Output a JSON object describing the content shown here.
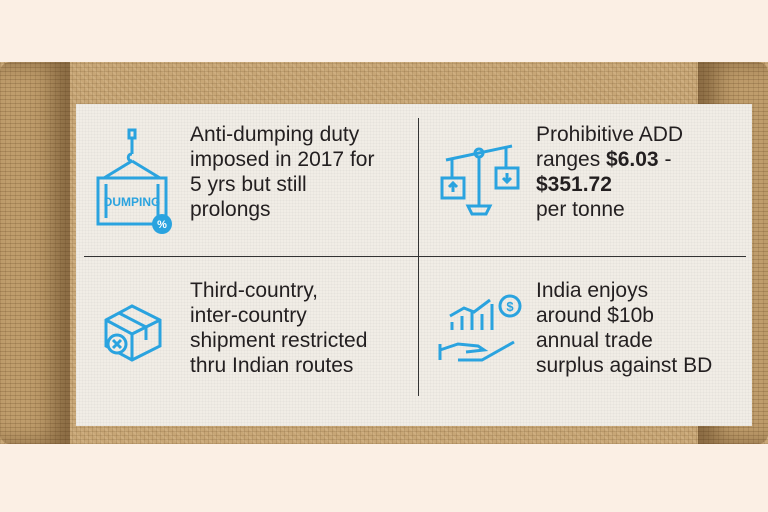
{
  "items": [
    {
      "icon": "dumping-container-icon",
      "icon_label": "DUMPING",
      "icon_badge": "%",
      "lines": [
        "Anti-dumping duty",
        "imposed in 2017 for",
        "5 yrs but still",
        "prolongs"
      ]
    },
    {
      "icon": "balance-scale-icon",
      "line1": "Prohibitive ADD",
      "line2_prefix": "ranges ",
      "line2_bold": "$6.03",
      "line2_suffix": " -",
      "line3_bold": "$351.72",
      "line4": "per tonne"
    },
    {
      "icon": "restricted-box-icon",
      "lines": [
        "Third-country,",
        "inter-country",
        "shipment restricted",
        "thru Indian routes"
      ]
    },
    {
      "icon": "hand-growth-chart-icon",
      "icon_badge": "$",
      "lines": [
        "India enjoys",
        "around $10b",
        "annual trade",
        "surplus against BD"
      ]
    }
  ],
  "colors": {
    "icon_blue": "#2aa3df",
    "text": "#231f20",
    "burlap": "#c8a777",
    "panel": "#f1ede6"
  }
}
